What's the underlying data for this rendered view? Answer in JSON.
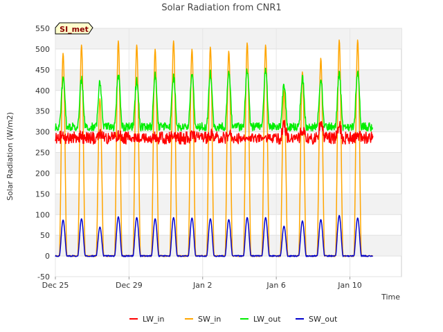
{
  "chart_data": {
    "type": "line",
    "title": "Solar Radiation from CNR1",
    "badge": "SI_met",
    "xlabel": "Time",
    "ylabel": "Solar Radiation (W/m2)",
    "ylim": [
      -50,
      550
    ],
    "yticks": [
      -50,
      0,
      50,
      100,
      150,
      200,
      250,
      300,
      350,
      400,
      450,
      500,
      550
    ],
    "xlim": [
      0,
      18.8
    ],
    "xticks": [
      {
        "label": "Dec 25",
        "value": 0
      },
      {
        "label": "Dec 29",
        "value": 4
      },
      {
        "label": "Jan 2",
        "value": 8
      },
      {
        "label": "Jan 6",
        "value": 12
      },
      {
        "label": "Jan 10",
        "value": 16
      }
    ],
    "data_end": 17.25,
    "grid": true,
    "legend_placement": "bottom",
    "day_peaks": [
      {
        "day": 0,
        "lw_in": 295,
        "sw_in": 490,
        "lw_out": 425,
        "sw_out": 87
      },
      {
        "day": 1,
        "lw_in": 290,
        "sw_in": 510,
        "lw_out": 428,
        "sw_out": 90
      },
      {
        "day": 2,
        "lw_in": 305,
        "sw_in": 380,
        "lw_out": 420,
        "sw_out": 70
      },
      {
        "day": 3,
        "lw_in": 300,
        "sw_in": 520,
        "lw_out": 438,
        "sw_out": 95
      },
      {
        "day": 4,
        "lw_in": 280,
        "sw_in": 510,
        "lw_out": 422,
        "sw_out": 93
      },
      {
        "day": 5,
        "lw_in": 290,
        "sw_in": 500,
        "lw_out": 435,
        "sw_out": 90
      },
      {
        "day": 6,
        "lw_in": 305,
        "sw_in": 520,
        "lw_out": 430,
        "sw_out": 93
      },
      {
        "day": 7,
        "lw_in": 300,
        "sw_in": 500,
        "lw_out": 435,
        "sw_out": 92
      },
      {
        "day": 8,
        "lw_in": 300,
        "sw_in": 505,
        "lw_out": 440,
        "sw_out": 90
      },
      {
        "day": 9,
        "lw_in": 295,
        "sw_in": 495,
        "lw_out": 442,
        "sw_out": 88
      },
      {
        "day": 10,
        "lw_in": 280,
        "sw_in": 515,
        "lw_out": 450,
        "sw_out": 93
      },
      {
        "day": 11,
        "lw_in": 265,
        "sw_in": 510,
        "lw_out": 445,
        "sw_out": 93
      },
      {
        "day": 12,
        "lw_in": 335,
        "sw_in": 400,
        "lw_out": 412,
        "sw_out": 72
      },
      {
        "day": 13,
        "lw_in": 320,
        "sw_in": 445,
        "lw_out": 430,
        "sw_out": 85
      },
      {
        "day": 14,
        "lw_in": 355,
        "sw_in": 478,
        "lw_out": 425,
        "sw_out": 88
      },
      {
        "day": 15,
        "lw_in": 330,
        "sw_in": 522,
        "lw_out": 438,
        "sw_out": 98
      },
      {
        "day": 16,
        "lw_in": 300,
        "sw_in": 522,
        "lw_out": 443,
        "sw_out": 92
      },
      {
        "day": 17,
        "lw_in": 300,
        "sw_in": 0,
        "lw_out": 325,
        "sw_out": 0
      }
    ],
    "baselines": {
      "lw_in": 285,
      "lw_out": 312,
      "sw_in": 0,
      "sw_out": 0
    },
    "series": [
      {
        "name": "LW_in",
        "key": "lw_in",
        "color": "#ff0000"
      },
      {
        "name": "SW_in",
        "key": "sw_in",
        "color": "#ffa500"
      },
      {
        "name": "LW_out",
        "key": "lw_out",
        "color": "#00ee00"
      },
      {
        "name": "SW_out",
        "key": "sw_out",
        "color": "#0000cc"
      }
    ]
  }
}
